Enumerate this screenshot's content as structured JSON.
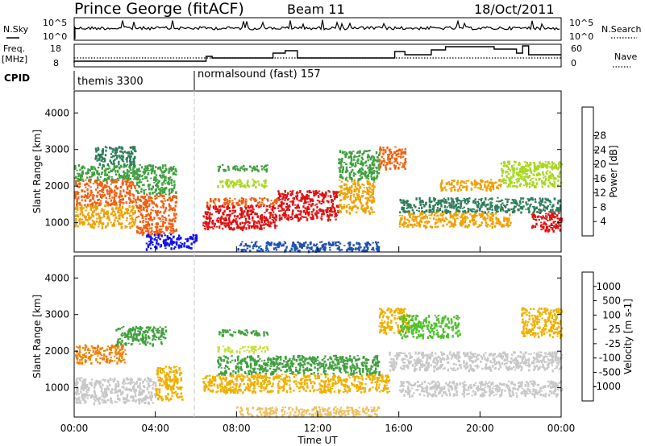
{
  "header": {
    "title": "Prince George (fitACF)",
    "beam": "Beam 11",
    "date": "18/Oct/2011"
  },
  "top_panels": {
    "nsky_label": "N.Sky",
    "nsky_ticks": [
      "10^5",
      "10^0"
    ],
    "nsearch_label": "N.Search",
    "nsearch_ticks": [
      "10^5",
      "10^0"
    ],
    "freq_label_1": "Freq.",
    "freq_label_2": "[MHz]",
    "freq_ticks": [
      "18",
      "8"
    ],
    "nave_label": "Nave",
    "nave_ticks": [
      "60",
      "0"
    ],
    "cpid_label": "CPID",
    "cpid_segments": [
      {
        "name": "themis 3300",
        "start_hr": 0.0,
        "end_hr": 6.0
      },
      {
        "name": "normalsound (fast) 157",
        "start_hr": 6.0,
        "end_hr": 24.0
      }
    ]
  },
  "chart_data": [
    {
      "type": "heatmap",
      "panel": "power",
      "ylabel": "Slant Range [km]",
      "yticks": [
        "1000",
        "2000",
        "3000",
        "4000"
      ],
      "ylim": [
        200,
        4600
      ],
      "xlim": [
        0,
        24
      ],
      "colorbar_label": "Power [dB]",
      "colorbar_ticks": [
        "4",
        "8",
        "12",
        "16",
        "20",
        "24",
        "28"
      ],
      "colorbar_colors": [
        "#1010f0",
        "#2050b0",
        "#2e7d5a",
        "#40a040",
        "#a8d820",
        "#f0d000",
        "#f0a000",
        "#f06010",
        "#e01010"
      ],
      "bands": [
        {
          "x0": 0.0,
          "x1": 3.0,
          "r0": 1500,
          "r1": 2200,
          "c": "#f06010"
        },
        {
          "x0": 0.0,
          "x1": 3.0,
          "r0": 900,
          "r1": 1500,
          "c": "#f0a000"
        },
        {
          "x0": 0.0,
          "x1": 3.0,
          "r0": 2200,
          "r1": 2600,
          "c": "#40a040"
        },
        {
          "x0": 1.0,
          "x1": 3.0,
          "r0": 2600,
          "r1": 3100,
          "c": "#2e7d5a"
        },
        {
          "x0": 3.0,
          "x1": 5.0,
          "r0": 700,
          "r1": 1800,
          "c": "#f06010"
        },
        {
          "x0": 3.0,
          "x1": 5.0,
          "r0": 1800,
          "r1": 2600,
          "c": "#40a040"
        },
        {
          "x0": 6.3,
          "x1": 10.0,
          "r0": 850,
          "r1": 1500,
          "c": "#e01010"
        },
        {
          "x0": 6.5,
          "x1": 10.0,
          "r0": 1500,
          "r1": 1700,
          "c": "#f06010"
        },
        {
          "x0": 7.0,
          "x1": 9.5,
          "r0": 2000,
          "r1": 2200,
          "c": "#a8d820"
        },
        {
          "x0": 7.0,
          "x1": 9.5,
          "r0": 2450,
          "r1": 2600,
          "c": "#40a040"
        },
        {
          "x0": 10.0,
          "x1": 13.0,
          "r0": 1100,
          "r1": 1900,
          "c": "#e01010"
        },
        {
          "x0": 13.0,
          "x1": 14.8,
          "r0": 1300,
          "r1": 2200,
          "c": "#f0a000"
        },
        {
          "x0": 13.0,
          "x1": 15.0,
          "r0": 2200,
          "r1": 3000,
          "c": "#40a040"
        },
        {
          "x0": 15.0,
          "x1": 16.3,
          "r0": 2500,
          "r1": 3100,
          "c": "#f06010"
        },
        {
          "x0": 16.0,
          "x1": 24.0,
          "r0": 1300,
          "r1": 1700,
          "c": "#2e7d5a"
        },
        {
          "x0": 16.0,
          "x1": 21.5,
          "r0": 900,
          "r1": 1300,
          "c": "#f0a000"
        },
        {
          "x0": 18.0,
          "x1": 21.0,
          "r0": 1900,
          "r1": 2200,
          "c": "#f0a000"
        },
        {
          "x0": 21.0,
          "x1": 24.0,
          "r0": 2000,
          "r1": 2700,
          "c": "#a8d820"
        },
        {
          "x0": 22.5,
          "x1": 24.0,
          "r0": 800,
          "r1": 1300,
          "c": "#e01010"
        },
        {
          "x0": 3.5,
          "x1": 6.0,
          "r0": 300,
          "r1": 700,
          "c": "#1010f0"
        },
        {
          "x0": 8.0,
          "x1": 15.0,
          "r0": 250,
          "r1": 500,
          "c": "#2050b0"
        }
      ]
    },
    {
      "type": "heatmap",
      "panel": "velocity",
      "ylabel": "Slant Range [km]",
      "yticks": [
        "1000",
        "2000",
        "3000",
        "4000"
      ],
      "ylim": [
        200,
        4600
      ],
      "xlim": [
        0,
        24
      ],
      "xlabel": "Time UT",
      "xticks": [
        "00:00",
        "04:00",
        "08:00",
        "12:00",
        "16:00",
        "20:00",
        "00:00"
      ],
      "colorbar_label": "Velocity [m s-1]",
      "colorbar_ticks": [
        "1000",
        "500",
        "100",
        "25",
        "-25",
        "-100",
        "-500",
        "-1000"
      ],
      "colorbar_colors": [
        "#1a2a9a",
        "#3050b0",
        "#2e7d5a",
        "#50c030",
        "#c8c8c8",
        "#f0b000",
        "#f08000",
        "#f05010",
        "#e01010"
      ],
      "bands": [
        {
          "x0": 0.0,
          "x1": 4.0,
          "r0": 600,
          "r1": 1300,
          "c": "#c8c8c8"
        },
        {
          "x0": 0.0,
          "x1": 2.5,
          "r0": 1700,
          "r1": 2200,
          "c": "#f08000"
        },
        {
          "x0": 2.0,
          "x1": 4.5,
          "r0": 2200,
          "r1": 2700,
          "c": "#40a040"
        },
        {
          "x0": 4.0,
          "x1": 5.3,
          "r0": 700,
          "r1": 1600,
          "c": "#f0b000"
        },
        {
          "x0": 6.3,
          "x1": 15.5,
          "r0": 900,
          "r1": 1400,
          "c": "#f0b000"
        },
        {
          "x0": 7.0,
          "x1": 15.0,
          "r0": 1400,
          "r1": 1900,
          "c": "#40a040"
        },
        {
          "x0": 7.0,
          "x1": 9.5,
          "r0": 2000,
          "r1": 2150,
          "c": "#c8e040"
        },
        {
          "x0": 7.0,
          "x1": 9.5,
          "r0": 2450,
          "r1": 2600,
          "c": "#40a040"
        },
        {
          "x0": 15.5,
          "x1": 24.0,
          "r0": 1500,
          "r1": 2000,
          "c": "#c8c8c8"
        },
        {
          "x0": 16.0,
          "x1": 24.0,
          "r0": 800,
          "r1": 1200,
          "c": "#c8c8c8"
        },
        {
          "x0": 15.0,
          "x1": 16.5,
          "r0": 2500,
          "r1": 3200,
          "c": "#f0b000"
        },
        {
          "x0": 16.0,
          "x1": 19.0,
          "r0": 2400,
          "r1": 3000,
          "c": "#50c030"
        },
        {
          "x0": 22.0,
          "x1": 24.0,
          "r0": 2400,
          "r1": 3200,
          "c": "#f0b000"
        },
        {
          "x0": 8.0,
          "x1": 15.0,
          "r0": 250,
          "r1": 500,
          "c": "#f0c060"
        }
      ]
    }
  ]
}
